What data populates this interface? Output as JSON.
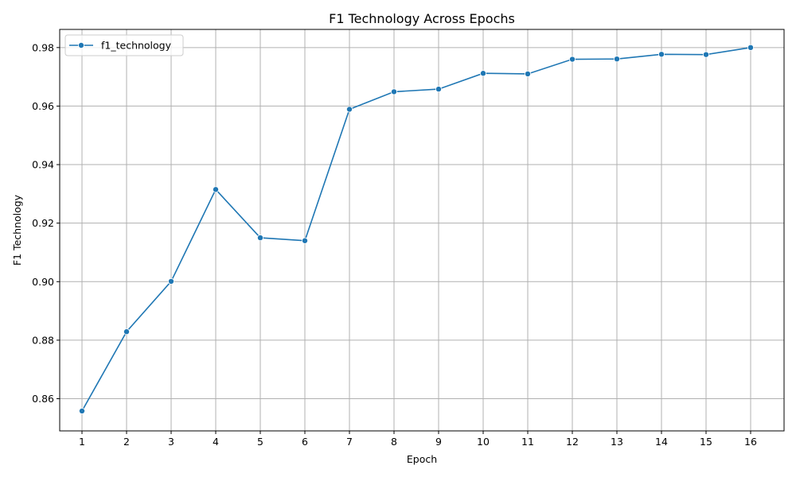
{
  "chart_data": {
    "type": "line",
    "title": "F1 Technology Across Epochs",
    "xlabel": "Epoch",
    "ylabel": "F1 Technology",
    "x": [
      1,
      2,
      3,
      4,
      5,
      6,
      7,
      8,
      9,
      10,
      11,
      12,
      13,
      14,
      15,
      16
    ],
    "series": [
      {
        "name": "f1_technology",
        "color": "#1f77b4",
        "marker": "circle",
        "values": [
          0.8558,
          0.8829,
          0.9001,
          0.9315,
          0.915,
          0.914,
          0.9589,
          0.9649,
          0.9658,
          0.9712,
          0.971,
          0.976,
          0.9761,
          0.9777,
          0.9776,
          0.98
        ]
      }
    ],
    "xlim": [
      0.5,
      16.75
    ],
    "ylim": [
      0.849,
      0.9862
    ],
    "xticks": [
      1,
      2,
      3,
      4,
      5,
      6,
      7,
      8,
      9,
      10,
      11,
      12,
      13,
      14,
      15,
      16
    ],
    "yticks": [
      0.86,
      0.88,
      0.9,
      0.92,
      0.94,
      0.96,
      0.98
    ],
    "ytick_labels": [
      "0.86",
      "0.88",
      "0.90",
      "0.92",
      "0.94",
      "0.96",
      "0.98"
    ],
    "grid": true,
    "legend_position": "top-left"
  }
}
